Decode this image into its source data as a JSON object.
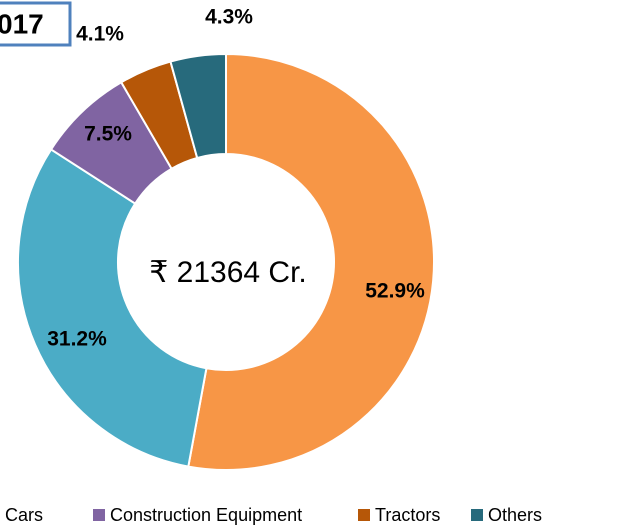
{
  "chart_data": {
    "type": "donut",
    "title": "017",
    "annotation": "₹ 21364 Cr.",
    "categories": [
      null,
      "Cars",
      "Construction Equipment",
      "Tractors",
      "Others"
    ],
    "values": [
      52.9,
      31.2,
      7.5,
      4.1,
      4.3
    ],
    "value_labels": [
      "52.9%",
      "31.2%",
      "7.5%",
      "4.1%",
      "4.3%"
    ],
    "colors": [
      "#f79646",
      "#4bacc6",
      "#8064a2",
      "#b65708",
      "#276a7c"
    ],
    "legend": "bottom"
  }
}
